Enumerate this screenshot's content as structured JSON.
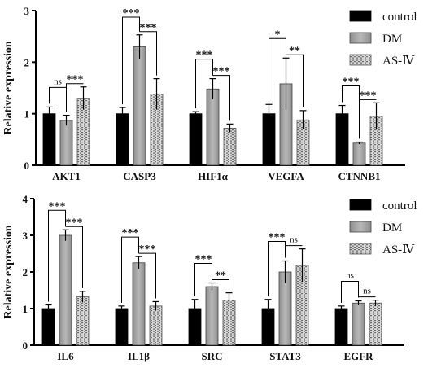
{
  "chart_data": [
    {
      "type": "bar",
      "ylabel": "Relative expression",
      "ylim": [
        0,
        3
      ],
      "yticks": [
        "0",
        "1",
        "2",
        "3"
      ],
      "categories": [
        "AKT1",
        "CASP3",
        "HIF1α",
        "VEGFA",
        "CTNNB1"
      ],
      "series": [
        {
          "name": "control",
          "values": [
            1.0,
            1.0,
            1.0,
            1.0,
            1.0
          ],
          "errors": [
            0.13,
            0.12,
            0.04,
            0.18,
            0.16
          ]
        },
        {
          "name": "DM",
          "values": [
            0.87,
            2.3,
            1.48,
            1.58,
            0.43
          ],
          "errors": [
            0.1,
            0.23,
            0.2,
            0.5,
            0.02
          ]
        },
        {
          "name": "AS-Ⅳ",
          "values": [
            1.3,
            1.38,
            0.72,
            0.88,
            0.95
          ],
          "errors": [
            0.22,
            0.3,
            0.08,
            0.18,
            0.26
          ]
        }
      ],
      "significance": [
        {
          "category": 0,
          "pair": [
            0,
            1
          ],
          "label": "ns"
        },
        {
          "category": 0,
          "pair": [
            1,
            2
          ],
          "label": "***"
        },
        {
          "category": 1,
          "pair": [
            0,
            1
          ],
          "label": "***"
        },
        {
          "category": 1,
          "pair": [
            1,
            2
          ],
          "label": "***"
        },
        {
          "category": 2,
          "pair": [
            0,
            1
          ],
          "label": "***"
        },
        {
          "category": 2,
          "pair": [
            1,
            2
          ],
          "label": "***"
        },
        {
          "category": 3,
          "pair": [
            0,
            1
          ],
          "label": "*"
        },
        {
          "category": 3,
          "pair": [
            1,
            2
          ],
          "label": "**"
        },
        {
          "category": 4,
          "pair": [
            0,
            1
          ],
          "label": "***"
        },
        {
          "category": 4,
          "pair": [
            1,
            2
          ],
          "label": "***"
        }
      ],
      "legend": "right"
    },
    {
      "type": "bar",
      "ylabel": "Relative expression",
      "ylim": [
        0,
        4
      ],
      "yticks": [
        "0",
        "1",
        "2",
        "3",
        "4"
      ],
      "categories": [
        "IL6",
        "IL1β",
        "SRC",
        "STAT3",
        "EGFR"
      ],
      "series": [
        {
          "name": "control",
          "values": [
            1.0,
            1.0,
            1.0,
            1.0,
            1.0
          ],
          "errors": [
            0.1,
            0.07,
            0.25,
            0.25,
            0.07
          ]
        },
        {
          "name": "DM",
          "values": [
            3.0,
            2.25,
            1.6,
            2.0,
            1.15
          ],
          "errors": [
            0.15,
            0.17,
            0.1,
            0.3,
            0.06
          ]
        },
        {
          "name": "AS-Ⅳ",
          "values": [
            1.32,
            1.07,
            1.23,
            2.18,
            1.15
          ],
          "errors": [
            0.15,
            0.12,
            0.2,
            0.45,
            0.08
          ]
        }
      ],
      "significance": [
        {
          "category": 0,
          "pair": [
            0,
            1
          ],
          "label": "***"
        },
        {
          "category": 0,
          "pair": [
            1,
            2
          ],
          "label": "***"
        },
        {
          "category": 1,
          "pair": [
            0,
            1
          ],
          "label": "***"
        },
        {
          "category": 1,
          "pair": [
            1,
            2
          ],
          "label": "***"
        },
        {
          "category": 2,
          "pair": [
            0,
            1
          ],
          "label": "***"
        },
        {
          "category": 2,
          "pair": [
            1,
            2
          ],
          "label": "**"
        },
        {
          "category": 3,
          "pair": [
            0,
            1
          ],
          "label": "***"
        },
        {
          "category": 3,
          "pair": [
            1,
            2
          ],
          "label": "ns"
        },
        {
          "category": 4,
          "pair": [
            0,
            1
          ],
          "label": "ns"
        },
        {
          "category": 4,
          "pair": [
            1,
            2
          ],
          "label": "ns"
        }
      ],
      "legend": "right"
    }
  ]
}
